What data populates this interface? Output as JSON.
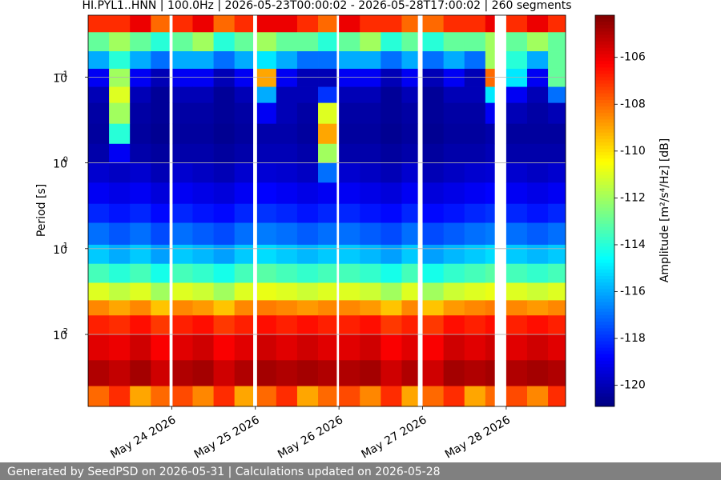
{
  "chart_data": {
    "type": "heatmap",
    "title": "HI.PYL1..HNN | 100.0Hz | 2026-05-23T00:00:02 - 2026-05-28T17:00:02 | 260 segments",
    "ylabel": "Period [s]",
    "colorbar_label": "Amplitude [m²/s⁴/Hz] [dB]",
    "colormap": "jet",
    "y_log": true,
    "y_inverted": true,
    "grid": true,
    "footer": "Generated by SeedPSD on 2026-05-31 | Calculations updated on 2026-05-28",
    "x": [
      23.0,
      23.25,
      23.5,
      23.75,
      23.97,
      24.01,
      24.25,
      24.5,
      24.75,
      24.97,
      25.02,
      25.25,
      25.5,
      25.75,
      25.97,
      26.0,
      26.25,
      26.5,
      26.75,
      26.94,
      27.0,
      27.25,
      27.5,
      27.75,
      27.86,
      28.0,
      28.25,
      28.5,
      28.71
    ],
    "xlim": [
      23.0,
      28.71
    ],
    "xticks": [
      {
        "value": 24,
        "label": "May 24 2026"
      },
      {
        "value": 25,
        "label": "May 25 2026"
      },
      {
        "value": 26,
        "label": "May 26 2026"
      },
      {
        "value": 27,
        "label": "May 27 2026"
      },
      {
        "value": 28,
        "label": "May 28 2026"
      }
    ],
    "y": [
      0.019,
      0.03,
      0.05,
      0.08,
      0.13,
      0.2,
      0.35,
      0.6,
      1,
      1.7,
      3,
      5,
      9,
      15,
      25,
      40,
      60,
      100,
      200,
      400,
      690
    ],
    "ylim": [
      0.019,
      690
    ],
    "yticks": [
      {
        "value": 0.1,
        "label": "10",
        "exponent": "−1"
      },
      {
        "value": 1,
        "label": "10",
        "exponent": "0"
      },
      {
        "value": 10,
        "label": "10",
        "exponent": "1"
      },
      {
        "value": 100,
        "label": "10",
        "exponent": "2"
      }
    ],
    "clim": [
      -120.9,
      -104.2
    ],
    "cticks": [
      -120,
      -118,
      -116,
      -114,
      -112,
      -110,
      -108,
      -106
    ],
    "values": [
      [
        -107,
        -107,
        -106,
        -108,
        null,
        -107,
        -106,
        -108,
        -107,
        null,
        -106,
        -106,
        -107,
        -108,
        null,
        -106,
        -107,
        -107,
        -108,
        null,
        -108,
        -107,
        -107,
        -106,
        null,
        -107,
        -106,
        -107
      ],
      [
        -113,
        -112,
        -113,
        -114,
        null,
        -113,
        -112,
        -114,
        -113,
        null,
        -112,
        -113,
        -113,
        -114,
        null,
        -113,
        -112,
        -114,
        -113,
        null,
        -114,
        -113,
        -113,
        -112,
        null,
        -113,
        -112,
        -113
      ],
      [
        -116,
        -114,
        -116,
        -117,
        null,
        -116,
        -116,
        -117,
        -116,
        null,
        -115,
        -116,
        -117,
        -117,
        null,
        -116,
        -116,
        -117,
        -116,
        null,
        -117,
        -116,
        -117,
        -112,
        null,
        -114,
        -116,
        -113
      ],
      [
        -119,
        -112,
        -119,
        -120,
        null,
        -119,
        -119,
        -120,
        -119,
        null,
        -109,
        -119,
        -120,
        -120,
        null,
        -119,
        -119,
        -120,
        -119,
        null,
        -120,
        -119,
        -120,
        -108,
        null,
        -115,
        -119,
        -113
      ],
      [
        -120,
        -111,
        -120,
        -120.5,
        null,
        -120,
        -120,
        -120.5,
        -120,
        null,
        -116,
        -120,
        -120,
        -118,
        null,
        -120,
        -120,
        -120.5,
        -120,
        null,
        -120.5,
        -120,
        -120,
        -115,
        null,
        -119,
        -120,
        -117
      ],
      [
        -120.3,
        -112,
        -120.3,
        -120.5,
        null,
        -120.3,
        -120.3,
        -120.5,
        -120.3,
        null,
        -119,
        -120,
        -120.3,
        -111,
        null,
        -120.3,
        -120.3,
        -120.5,
        -120.3,
        null,
        -120.5,
        -120.3,
        -120.3,
        -119,
        null,
        -120,
        -120.3,
        -120
      ],
      [
        -120.4,
        -114,
        -120.4,
        -120.6,
        null,
        -120.4,
        -120.4,
        -120.6,
        -120.4,
        null,
        -120.2,
        -120.2,
        -120.4,
        -109,
        null,
        -120.4,
        -120.4,
        -120.6,
        -120.4,
        null,
        -120.6,
        -120.4,
        -120.4,
        -120.2,
        null,
        -120.4,
        -120.4,
        -120.4
      ],
      [
        -120.2,
        -119,
        -120.2,
        -120.4,
        null,
        -120.2,
        -120.2,
        -120.4,
        -120.2,
        null,
        -120,
        -120,
        -120.2,
        -112,
        null,
        -120.2,
        -120.2,
        -120.4,
        -120.2,
        null,
        -120.4,
        -120.2,
        -120.2,
        -120,
        null,
        -120.2,
        -120.2,
        -120.2
      ],
      [
        -119.6,
        -119.8,
        -119.6,
        -120,
        null,
        -119.6,
        -119.8,
        -120,
        -119.6,
        null,
        -119.5,
        -119.6,
        -119.8,
        -117,
        null,
        -119.6,
        -119.8,
        -120,
        -119.6,
        null,
        -120,
        -119.8,
        -119.6,
        -119.5,
        null,
        -119.6,
        -119.8,
        -119.6
      ],
      [
        -119,
        -119.2,
        -119,
        -119.4,
        null,
        -119,
        -119.2,
        -119.4,
        -119,
        null,
        -118.8,
        -119,
        -119.2,
        -119,
        null,
        -119,
        -119.2,
        -119.4,
        -119,
        null,
        -119.4,
        -119.2,
        -119,
        -118.8,
        null,
        -119,
        -119.2,
        -119
      ],
      [
        -118.2,
        -118.5,
        -118.2,
        -118.7,
        null,
        -118.2,
        -118.5,
        -118.7,
        -118.2,
        null,
        -118,
        -118.2,
        -118.5,
        -118.2,
        null,
        -118.2,
        -118.5,
        -118.7,
        -118.2,
        null,
        -118.7,
        -118.5,
        -118.2,
        -118,
        null,
        -118.2,
        -118.5,
        -118.2
      ],
      [
        -117,
        -117.4,
        -117,
        -117.6,
        null,
        -117,
        -117.3,
        -117.6,
        -117,
        null,
        -116.8,
        -117,
        -117.3,
        -117,
        null,
        -117,
        -117.3,
        -117.6,
        -117,
        null,
        -117.6,
        -117.3,
        -117,
        -116.8,
        null,
        -117,
        -117.3,
        -117
      ],
      [
        -115.5,
        -116,
        -115.5,
        -116.2,
        null,
        -115.5,
        -115.8,
        -116.2,
        -115.5,
        null,
        -115.2,
        -115.5,
        -115.8,
        -115.5,
        null,
        -115.5,
        -115.8,
        -116.2,
        -115.5,
        null,
        -116.2,
        -115.8,
        -115.5,
        -115.2,
        null,
        -115.5,
        -115.8,
        -115.5
      ],
      [
        -113.5,
        -114,
        -113.5,
        -114.3,
        null,
        -113.5,
        -113.8,
        -114.3,
        -113.5,
        null,
        -113.2,
        -113.5,
        -113.8,
        -113.5,
        null,
        -113.5,
        -113.8,
        -114.3,
        -113.5,
        null,
        -114.3,
        -113.8,
        -113.5,
        -113.2,
        null,
        -113.5,
        -113.8,
        -113.5
      ],
      [
        -111,
        -111.5,
        -111,
        -112,
        null,
        -111,
        -111.3,
        -112,
        -111,
        null,
        -110.8,
        -111,
        -111.3,
        -111,
        null,
        -111,
        -111.3,
        -112,
        -111,
        null,
        -112,
        -111.3,
        -111,
        -110.8,
        null,
        -111,
        -111.3,
        -111
      ],
      [
        -108.5,
        -109,
        -108.5,
        -109.5,
        null,
        -108.5,
        -108.8,
        -109.5,
        -108.5,
        null,
        -108.3,
        -108.5,
        -108.8,
        -108.5,
        null,
        -108.5,
        -108.8,
        -109.5,
        -108.5,
        null,
        -109.5,
        -108.8,
        -108.5,
        -108.3,
        null,
        -108.5,
        -108.8,
        -108.5
      ],
      [
        -106.8,
        -107,
        -106.5,
        -107.2,
        null,
        -106.8,
        -106.5,
        -107.2,
        -106.8,
        null,
        -106.5,
        -106.8,
        -106.5,
        -106.8,
        null,
        -106.8,
        -106.5,
        -107.2,
        -106.8,
        null,
        -107.2,
        -106.5,
        -106.8,
        -106.5,
        null,
        -106.8,
        -106.5,
        -106.8
      ],
      [
        -105.8,
        -106,
        -105.5,
        -106.2,
        null,
        -105.8,
        -105.5,
        -106.2,
        -105.8,
        null,
        -105.5,
        -105.8,
        -105.5,
        -105.8,
        null,
        -105.8,
        -105.5,
        -106.2,
        -105.8,
        null,
        -106.2,
        -105.5,
        -105.8,
        -105.5,
        null,
        -105.8,
        -105.5,
        -105.8
      ],
      [
        -105,
        -105.3,
        -104.8,
        -105.5,
        null,
        -105,
        -104.8,
        -105.5,
        -105,
        null,
        -104.8,
        -105,
        -104.8,
        -105,
        null,
        -105,
        -104.8,
        -105.5,
        -105,
        null,
        -105.5,
        -104.8,
        -105,
        -104.8,
        null,
        -105,
        -104.8,
        -105
      ],
      [
        -108,
        -107,
        -109,
        -108,
        null,
        -107.5,
        -108.5,
        -107,
        -109,
        null,
        -108,
        -107,
        -109,
        -108,
        null,
        -107.5,
        -108.5,
        -107,
        -109,
        null,
        -108,
        -107,
        -109,
        -108,
        null,
        -107.5,
        -108.5,
        -107
      ]
    ]
  }
}
